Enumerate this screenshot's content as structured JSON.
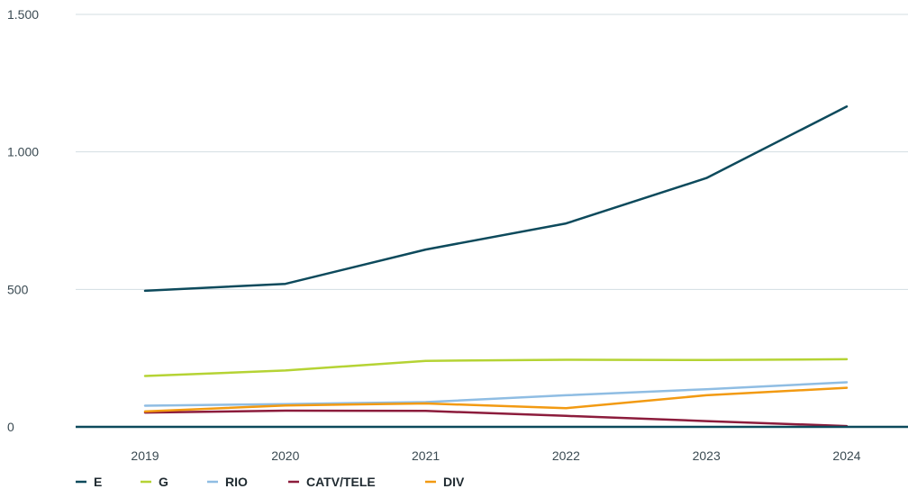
{
  "chart_data": {
    "type": "line",
    "x": [
      "2019",
      "2020",
      "2021",
      "2022",
      "2023",
      "2024"
    ],
    "series": [
      {
        "name": "E",
        "color": "#0d4a5c",
        "values": [
          495,
          520,
          645,
          740,
          905,
          1165
        ]
      },
      {
        "name": "G",
        "color": "#b5d334",
        "values": [
          185,
          205,
          240,
          244,
          243,
          246
        ]
      },
      {
        "name": "RIO",
        "color": "#8fbde3",
        "values": [
          77,
          83,
          90,
          115,
          137,
          162
        ]
      },
      {
        "name": "CATV/TELE",
        "color": "#8c1c3c",
        "values": [
          52,
          59,
          58,
          40,
          21,
          3
        ]
      },
      {
        "name": "DIV",
        "color": "#f29a12",
        "values": [
          56,
          78,
          85,
          68,
          115,
          142
        ]
      }
    ],
    "yticks": [
      {
        "value": 0,
        "label": "0"
      },
      {
        "value": 500,
        "label": "500"
      },
      {
        "value": 1000,
        "label": "1.000"
      },
      {
        "value": 1500,
        "label": "1.500"
      }
    ],
    "ylim": [
      0,
      1500
    ],
    "grid": true,
    "legend": "bottom-left",
    "title": "",
    "xlabel": "",
    "ylabel": ""
  }
}
